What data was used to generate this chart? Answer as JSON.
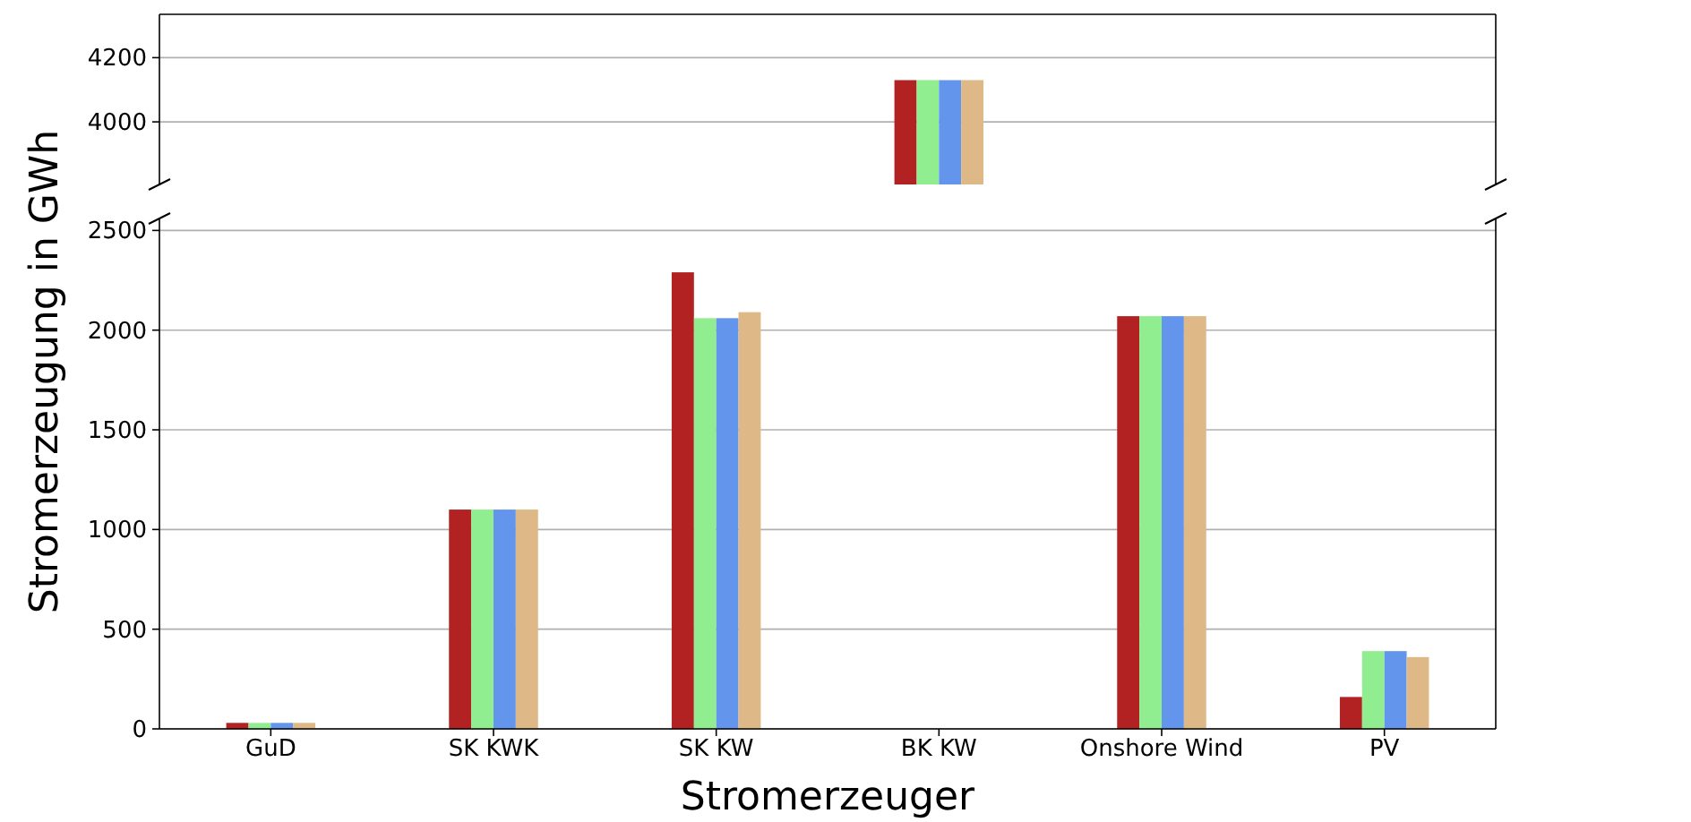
{
  "chart_data": [
    {
      "type": "bar",
      "series": [
        {
          "color": "#b22222",
          "values": [
            null,
            null,
            null,
            4130,
            null,
            null
          ]
        },
        {
          "color": "#90ee90",
          "values": [
            null,
            null,
            null,
            4130,
            null,
            null
          ]
        },
        {
          "color": "#6495ed",
          "values": [
            null,
            null,
            null,
            4130,
            null,
            null
          ]
        },
        {
          "color": "#deb887",
          "values": [
            null,
            null,
            null,
            4130,
            null,
            null
          ]
        }
      ],
      "ylim": [
        3805,
        4335
      ],
      "yticks": [
        4000,
        4200
      ],
      "grid": "y",
      "tick_labels": "y"
    },
    {
      "type": "bar",
      "categories": [
        "GuD",
        "SK KWK",
        "SK KW",
        "BK KW",
        "Onshore Wind",
        "PV"
      ],
      "xlabel": "Stromerzeuger",
      "ylabel": "Stromerzeugung in GWh",
      "series": [
        {
          "color": "#b22222",
          "values": [
            30,
            1100,
            2290,
            null,
            2070,
            160
          ]
        },
        {
          "color": "#90ee90",
          "values": [
            30,
            1100,
            2060,
            null,
            2070,
            390
          ]
        },
        {
          "color": "#6495ed",
          "values": [
            30,
            1100,
            2060,
            null,
            2070,
            390
          ]
        },
        {
          "color": "#deb887",
          "values": [
            30,
            1100,
            2090,
            null,
            2070,
            360
          ]
        }
      ],
      "ylim": [
        0,
        2560
      ],
      "yticks": [
        0,
        500,
        1000,
        1500,
        2000,
        2500
      ],
      "grid": "y"
    }
  ]
}
